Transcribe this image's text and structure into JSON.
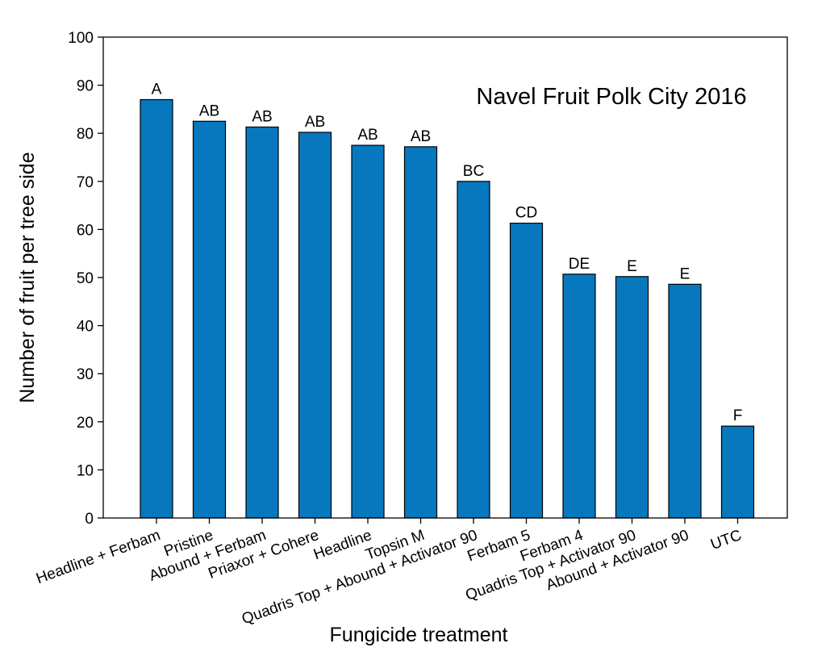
{
  "chart_data": {
    "type": "bar",
    "title": "Navel Fruit Polk City 2016",
    "xlabel": "Fungicide treatment",
    "ylabel": "Number of fruit per tree side",
    "ylim": [
      0,
      100
    ],
    "yticks": [
      0,
      10,
      20,
      30,
      40,
      50,
      60,
      70,
      80,
      90,
      100
    ],
    "grid": false,
    "bar_color": "#0878be",
    "categories": [
      "Headline + Ferbam",
      "Pristine",
      "Abound + Ferbam",
      "Priaxor + Cohere",
      "Headline",
      "Topsin M",
      "Quadris Top + Abound + Activator 90",
      "Ferbam 5",
      "Ferbam 4",
      "Quadris Top + Activator 90",
      "Abound + Activator 90",
      "UTC"
    ],
    "values": [
      87,
      82.5,
      81.3,
      80.2,
      77.5,
      77.2,
      70,
      61.3,
      50.7,
      50.2,
      48.6,
      19.1
    ],
    "letters": [
      "A",
      "AB",
      "AB",
      "AB",
      "AB",
      "AB",
      "BC",
      "CD",
      "DE",
      "E",
      "E",
      "F"
    ]
  }
}
